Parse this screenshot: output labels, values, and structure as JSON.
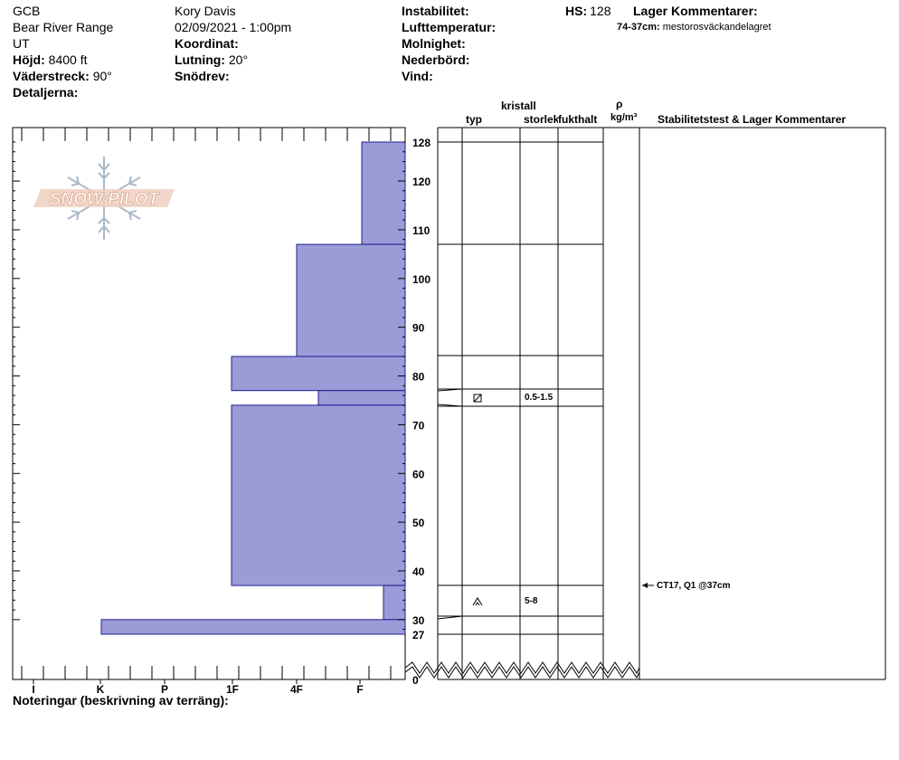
{
  "header": {
    "col1": {
      "name": "GCB",
      "range": "Bear River Range",
      "state": "UT",
      "elevation_label": "Höjd:",
      "elevation_value": "8400 ft",
      "aspect_label": "Väderstreck:",
      "aspect_value": "90°",
      "details_label": "Detaljerna:"
    },
    "col2": {
      "observer": "Kory Davis",
      "datetime": "02/09/2021 - 1:00pm",
      "coord_label": "Koordinat:",
      "slope_label": "Lutning:",
      "slope_value": "20°",
      "drift_label": "Snödrev:"
    },
    "col3": {
      "instability_label": "Instabilitet:",
      "airtemp_label": "Lufttemperatur:",
      "sky_label": "Molnighet:",
      "precip_label": "Nederbörd:",
      "wind_label": "Vind:"
    },
    "hs_label": "HS:",
    "hs_value": "128",
    "layer_comments_label": "Lager Kommentarer:",
    "layer_comment_range": "74-37cm:",
    "layer_comment_text": "mestorosväckandelagret"
  },
  "logo_text": "SNOW PILOT",
  "columns": {
    "type": "typ",
    "crystal": "kristall",
    "size": "storlek",
    "moisture": "fukthalt",
    "rho": "ρ",
    "density_unit": "kg/m³",
    "stability": "Stabilitetstest & Lager Kommentarer"
  },
  "notes_label": "Noteringar (beskrivning av terräng):",
  "colors": {
    "hardness_fill": "#9b9bd8",
    "hardness_stroke": "#1f1f8f"
  },
  "chart_data": {
    "type": "bar",
    "xlabel": "",
    "ylabel": "",
    "hardness_ticks": [
      "I",
      "K",
      "P",
      "1F",
      "4F",
      "F"
    ],
    "depth_ticks": [
      128,
      120,
      110,
      100,
      90,
      80,
      70,
      60,
      50,
      40,
      30,
      27,
      0
    ],
    "ylim": [
      0,
      128
    ],
    "layers": [
      {
        "top": 128,
        "bottom": 107,
        "hardness": "F"
      },
      {
        "top": 107,
        "bottom": 84,
        "hardness": "4F"
      },
      {
        "top": 84,
        "bottom": 77,
        "hardness": "1F"
      },
      {
        "top": 77,
        "bottom": 74,
        "hardness": "4F-"
      },
      {
        "top": 74,
        "bottom": 37,
        "hardness": "1F"
      },
      {
        "top": 37,
        "bottom": 30,
        "hardness": "F+"
      },
      {
        "top": 30,
        "bottom": 27,
        "hardness": "K"
      }
    ],
    "layer_details": [
      {
        "depth": 75,
        "grain_symbol": "⧄",
        "size": "0.5-1.5"
      },
      {
        "depth": 34,
        "grain_symbol": "^",
        "size": "5-8"
      }
    ],
    "stability_tests": [
      {
        "depth": 37,
        "text": "CT17, Q1 @37cm"
      }
    ]
  }
}
